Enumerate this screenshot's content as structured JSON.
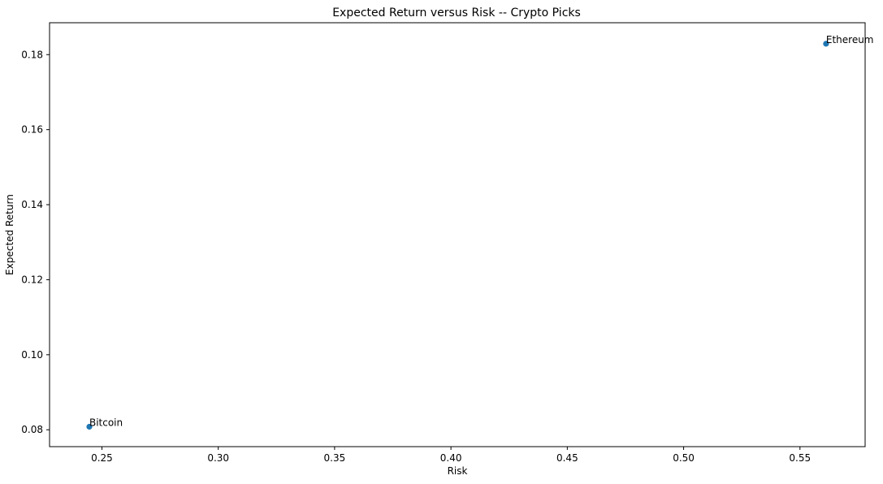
{
  "chart_data": {
    "type": "scatter",
    "title": "Expected Return versus Risk -- Crypto Picks",
    "xlabel": "Risk",
    "ylabel": "Expected Return",
    "xlim": [
      0.2275,
      0.578
    ],
    "ylim": [
      0.0755,
      0.1885
    ],
    "x_ticks": [
      0.25,
      0.3,
      0.35,
      0.4,
      0.45,
      0.5,
      0.55
    ],
    "x_tick_labels": [
      "0.25",
      "0.30",
      "0.35",
      "0.40",
      "0.45",
      "0.50",
      "0.55"
    ],
    "y_ticks": [
      0.08,
      0.1,
      0.12,
      0.14,
      0.16,
      0.18
    ],
    "y_tick_labels": [
      "0.08",
      "0.10",
      "0.12",
      "0.14",
      "0.16",
      "0.18"
    ],
    "grid": false,
    "marker_color": "#1f77b4",
    "points": [
      {
        "label": "Bitcoin",
        "x": 0.2446,
        "y": 0.0808
      },
      {
        "label": "Ethereum",
        "x": 0.5612,
        "y": 0.1829
      }
    ]
  }
}
